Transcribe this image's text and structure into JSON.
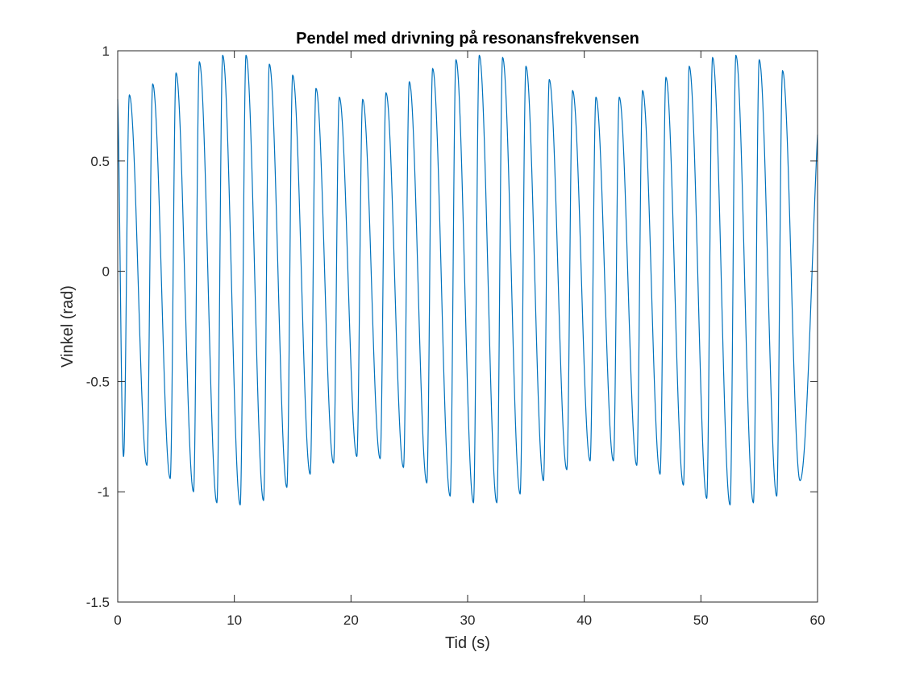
{
  "chart_data": {
    "type": "line",
    "title": "Pendel med drivning på resonansfrekvensen",
    "xlabel": "Tid (s)",
    "ylabel": "Vinkel (rad)",
    "xlim": [
      0,
      60
    ],
    "ylim": [
      -1.5,
      1
    ],
    "xticks": [
      0,
      10,
      20,
      30,
      40,
      50,
      60
    ],
    "xtick_labels": [
      "0",
      "10",
      "20",
      "30",
      "40",
      "50",
      "60"
    ],
    "yticks": [
      -1.5,
      -1,
      -0.5,
      0,
      0.5,
      1
    ],
    "ytick_labels": [
      "-1.5",
      "-1",
      "-0.5",
      "0",
      "0.5",
      "1"
    ],
    "grid": false,
    "legend": "none",
    "series": [
      {
        "color": "#0072BD",
        "period": 2.0,
        "start_value": 0.78,
        "end_value": 0.62,
        "peaks": [
          [
            1.0,
            0.8
          ],
          [
            3.0,
            0.85
          ],
          [
            5.0,
            0.9
          ],
          [
            7.0,
            0.95
          ],
          [
            9.0,
            0.98
          ],
          [
            11.0,
            0.98
          ],
          [
            13.0,
            0.94
          ],
          [
            15.0,
            0.89
          ],
          [
            17.0,
            0.83
          ],
          [
            19.0,
            0.79
          ],
          [
            21.0,
            0.78
          ],
          [
            23.0,
            0.81
          ],
          [
            25.0,
            0.86
          ],
          [
            27.0,
            0.92
          ],
          [
            29.0,
            0.96
          ],
          [
            31.0,
            0.98
          ],
          [
            33.0,
            0.97
          ],
          [
            35.0,
            0.93
          ],
          [
            37.0,
            0.87
          ],
          [
            39.0,
            0.82
          ],
          [
            41.0,
            0.79
          ],
          [
            43.0,
            0.79
          ],
          [
            45.0,
            0.82
          ],
          [
            47.0,
            0.88
          ],
          [
            49.0,
            0.93
          ],
          [
            51.0,
            0.97
          ],
          [
            53.0,
            0.98
          ],
          [
            55.0,
            0.96
          ],
          [
            57.0,
            0.91
          ]
        ],
        "troughs": [
          [
            0.5,
            -0.84
          ],
          [
            2.5,
            -0.88
          ],
          [
            4.5,
            -0.94
          ],
          [
            6.5,
            -1.0
          ],
          [
            8.5,
            -1.05
          ],
          [
            10.5,
            -1.06
          ],
          [
            12.5,
            -1.04
          ],
          [
            14.5,
            -0.98
          ],
          [
            16.5,
            -0.92
          ],
          [
            18.5,
            -0.87
          ],
          [
            20.5,
            -0.84
          ],
          [
            22.5,
            -0.85
          ],
          [
            24.5,
            -0.89
          ],
          [
            26.5,
            -0.96
          ],
          [
            28.5,
            -1.02
          ],
          [
            30.5,
            -1.05
          ],
          [
            32.5,
            -1.05
          ],
          [
            34.5,
            -1.01
          ],
          [
            36.5,
            -0.95
          ],
          [
            38.5,
            -0.9
          ],
          [
            40.5,
            -0.86
          ],
          [
            42.5,
            -0.86
          ],
          [
            44.5,
            -0.88
          ],
          [
            46.5,
            -0.92
          ],
          [
            48.5,
            -0.97
          ],
          [
            50.5,
            -1.03
          ],
          [
            52.5,
            -1.06
          ],
          [
            54.5,
            -1.05
          ],
          [
            56.5,
            -1.02
          ],
          [
            58.5,
            -0.95
          ]
        ]
      }
    ]
  }
}
